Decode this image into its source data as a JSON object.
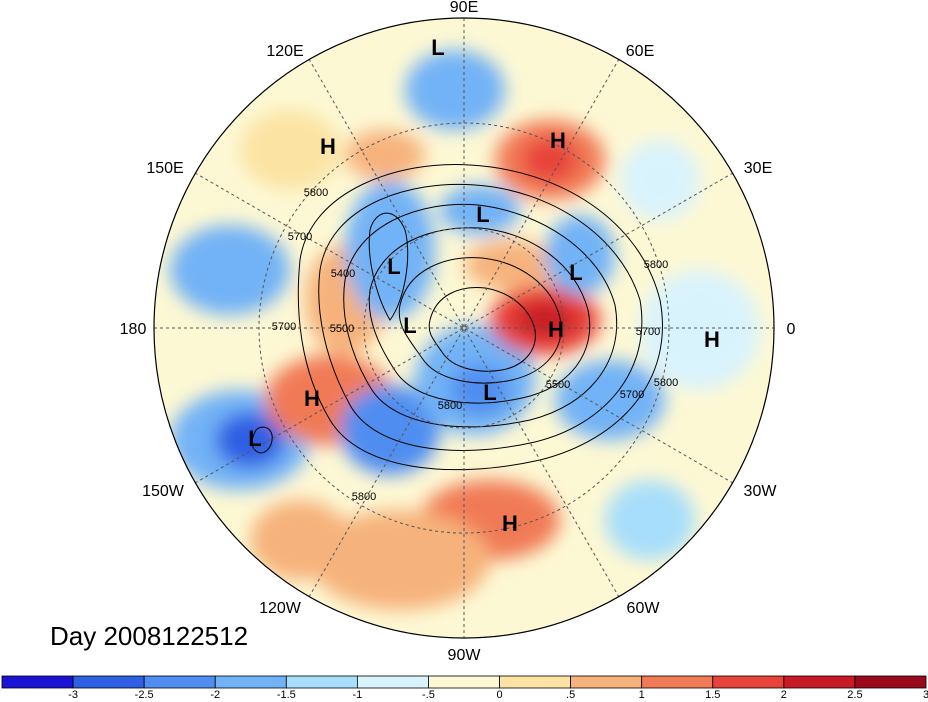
{
  "title": "Day 2008122512",
  "longitude_labels": [
    "90E",
    "120E",
    "60E",
    "150E",
    "30E",
    "180",
    "0",
    "150W",
    "30W",
    "120W",
    "60W",
    "90W"
  ],
  "contour_labels": [
    "5800",
    "5700",
    "5400",
    "5500",
    "5700",
    "5800",
    "5500",
    "5700",
    "5800",
    "5700",
    "5800",
    "5800"
  ],
  "pressure_centers": [
    {
      "type": "L"
    },
    {
      "type": "H"
    },
    {
      "type": "H"
    },
    {
      "type": "L"
    },
    {
      "type": "L"
    },
    {
      "type": "L"
    },
    {
      "type": "L"
    },
    {
      "type": "H"
    },
    {
      "type": "H"
    },
    {
      "type": "L"
    },
    {
      "type": "H"
    },
    {
      "type": "L"
    },
    {
      "type": "H"
    }
  ],
  "colorbar": {
    "ticks": [
      "-3",
      "-2.5",
      "-2",
      "-1.5",
      "-1",
      "-.5",
      "0",
      ".5",
      "1",
      "1.5",
      "2",
      "2.5",
      "3"
    ],
    "colors": [
      "#1a13d6",
      "#2f5fe3",
      "#4f8ef0",
      "#72b2f6",
      "#a7defb",
      "#d9f3fd",
      "#fdf8d4",
      "#fbe3a3",
      "#f6b27c",
      "#f17a57",
      "#e8433a",
      "#c81a25",
      "#9b0a1c"
    ]
  }
}
